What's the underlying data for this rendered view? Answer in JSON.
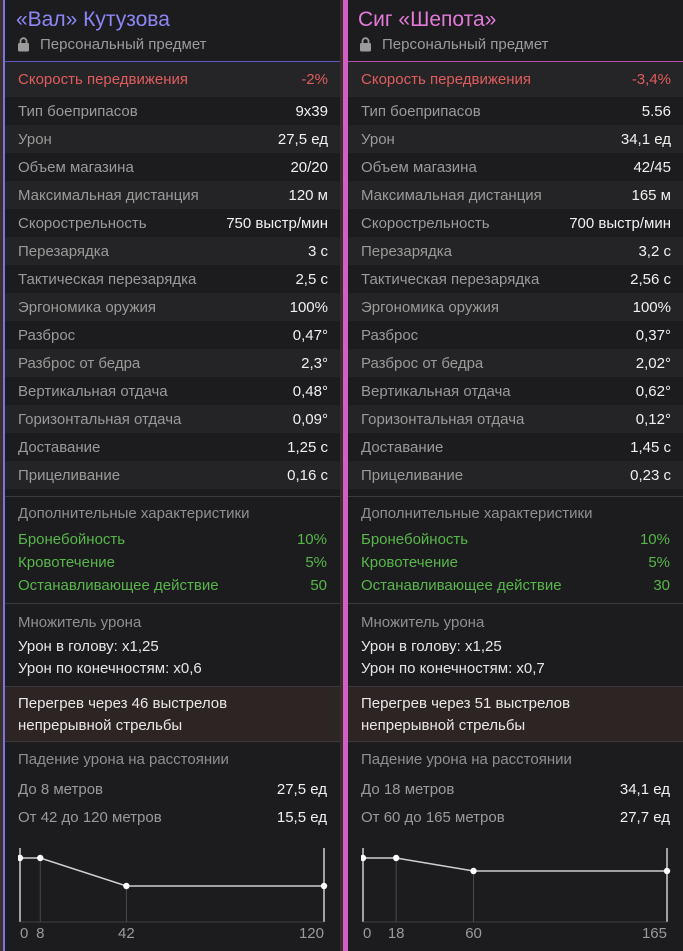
{
  "cards": [
    {
      "title": "«Вал» Кутузова",
      "personal": "Персональный предмет",
      "speed": {
        "label": "Скорость передвижения",
        "value": "-2%"
      },
      "stats": [
        {
          "label": "Тип боеприпасов",
          "value": "9х39"
        },
        {
          "label": "Урон",
          "value": "27,5 ед"
        },
        {
          "label": "Объем магазина",
          "value": "20/20"
        },
        {
          "label": "Максимальная дистанция",
          "value": "120 м"
        },
        {
          "label": "Скорострельность",
          "value": "750 выстр/мин"
        },
        {
          "label": "Перезарядка",
          "value": "3 с"
        },
        {
          "label": "Тактическая перезарядка",
          "value": "2,5 с"
        },
        {
          "label": "Эргономика оружия",
          "value": "100%"
        },
        {
          "label": "Разброс",
          "value": "0,47°"
        },
        {
          "label": "Разброс от бедра",
          "value": "2,3°"
        },
        {
          "label": "Вертикальная отдача",
          "value": "0,48°"
        },
        {
          "label": "Горизонтальная отдача",
          "value": "0,09°"
        },
        {
          "label": "Доставание",
          "value": "1,25 с"
        },
        {
          "label": "Прицеливание",
          "value": "0,16 с"
        }
      ],
      "extra_title": "Дополнительные характеристики",
      "extra": [
        {
          "label": "Бронебойность",
          "value": "10%"
        },
        {
          "label": "Кровотечение",
          "value": "5%"
        },
        {
          "label": "Останавливающее действие",
          "value": "50"
        }
      ],
      "mult_title": "Множитель урона",
      "mult": [
        "Урон в голову: x1,25",
        "Урон по конечностям: x0,6"
      ],
      "heat": [
        "Перегрев через 46 выстрелов",
        "непрерывной стрельбы"
      ],
      "drop_title": "Падение урона на расстоянии",
      "drop": [
        {
          "label": "До 8 метров",
          "value": "27,5 ед"
        },
        {
          "label": "От 42 до 120 метров",
          "value": "15,5 ед"
        }
      ],
      "chart_data": {
        "type": "line",
        "x": [
          0,
          8,
          42,
          120
        ],
        "y": [
          27.5,
          27.5,
          15.5,
          15.5
        ],
        "xticks": [
          "0",
          "8",
          "42",
          "120"
        ],
        "xlim": [
          0,
          120
        ]
      }
    },
    {
      "title": "Сиг «Шепота»",
      "personal": "Персональный предмет",
      "speed": {
        "label": "Скорость передвижения",
        "value": "-3,4%"
      },
      "stats": [
        {
          "label": "Тип боеприпасов",
          "value": "5.56"
        },
        {
          "label": "Урон",
          "value": "34,1 ед"
        },
        {
          "label": "Объем магазина",
          "value": "42/45"
        },
        {
          "label": "Максимальная дистанция",
          "value": "165 м"
        },
        {
          "label": "Скорострельность",
          "value": "700 выстр/мин"
        },
        {
          "label": "Перезарядка",
          "value": "3,2 с"
        },
        {
          "label": "Тактическая перезарядка",
          "value": "2,56 с"
        },
        {
          "label": "Эргономика оружия",
          "value": "100%"
        },
        {
          "label": "Разброс",
          "value": "0,37°"
        },
        {
          "label": "Разброс от бедра",
          "value": "2,02°"
        },
        {
          "label": "Вертикальная отдача",
          "value": "0,62°"
        },
        {
          "label": "Горизонтальная отдача",
          "value": "0,12°"
        },
        {
          "label": "Доставание",
          "value": "1,45 с"
        },
        {
          "label": "Прицеливание",
          "value": "0,23 с"
        }
      ],
      "extra_title": "Дополнительные характеристики",
      "extra": [
        {
          "label": "Бронебойность",
          "value": "10%"
        },
        {
          "label": "Кровотечение",
          "value": "5%"
        },
        {
          "label": "Останавливающее действие",
          "value": "30"
        }
      ],
      "mult_title": "Множитель урона",
      "mult": [
        "Урон в голову: x1,25",
        "Урон по конечностям: x0,7"
      ],
      "heat": [
        "Перегрев через 51 выстрелов",
        "непрерывной стрельбы"
      ],
      "drop_title": "Падение урона на расстоянии",
      "drop": [
        {
          "label": "До 18 метров",
          "value": "34,1 ед"
        },
        {
          "label": "От 60 до 165 метров",
          "value": "27,7 ед"
        }
      ],
      "chart_data": {
        "type": "line",
        "x": [
          0,
          18,
          60,
          165
        ],
        "y": [
          34.1,
          34.1,
          27.7,
          27.7
        ],
        "xticks": [
          "0",
          "18",
          "60",
          "165"
        ],
        "xlim": [
          0,
          165
        ]
      }
    }
  ]
}
